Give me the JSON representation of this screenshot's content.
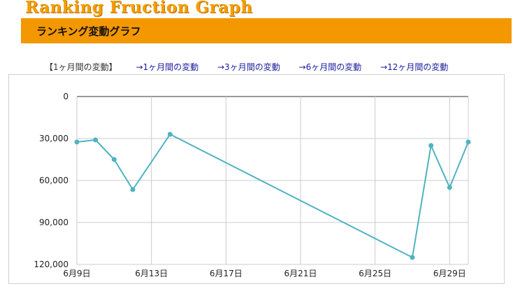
{
  "header": {
    "logo_title": "Ranking Fruction Graph",
    "banner_title": "ランキング変動グラフ"
  },
  "tabs": [
    {
      "label": "【1ヶ月間の変動】",
      "active": true
    },
    {
      "label": "→1ヶ月間の変動",
      "active": false
    },
    {
      "label": "→3ヶ月間の変動",
      "active": false
    },
    {
      "label": "→6ヶ月間の変動",
      "active": false
    },
    {
      "label": "→12ヶ月間の変動",
      "active": false
    }
  ],
  "colors": {
    "banner": "#f39800",
    "logo": "#f59e00",
    "line": "#4fb3c1",
    "link": "#1a1a9c"
  },
  "chart_data": {
    "type": "line",
    "title": "",
    "xlabel": "",
    "ylabel": "",
    "y_reversed": true,
    "ylim": [
      0,
      120000
    ],
    "y_ticks": [
      0,
      30000,
      60000,
      90000,
      120000
    ],
    "y_tick_labels": [
      "0",
      "30,000",
      "60,000",
      "90,000",
      "120,000"
    ],
    "xlim": [
      "6/9",
      "6/30"
    ],
    "x_ticks": [
      "6/9",
      "6/13",
      "6/17",
      "6/21",
      "6/25",
      "6/29"
    ],
    "x_tick_labels": [
      "6月9日",
      "6月13日",
      "6月17日",
      "6月21日",
      "6月25日",
      "6月29日"
    ],
    "grid": true,
    "series": [
      {
        "x": [
          "6/9",
          "6/10",
          "6/11",
          "6/12",
          "6/14",
          "6/27",
          "6/28",
          "6/29",
          "6/30"
        ],
        "values": [
          32500,
          31000,
          45000,
          66500,
          27000,
          115000,
          35000,
          65000,
          32500
        ]
      }
    ]
  }
}
